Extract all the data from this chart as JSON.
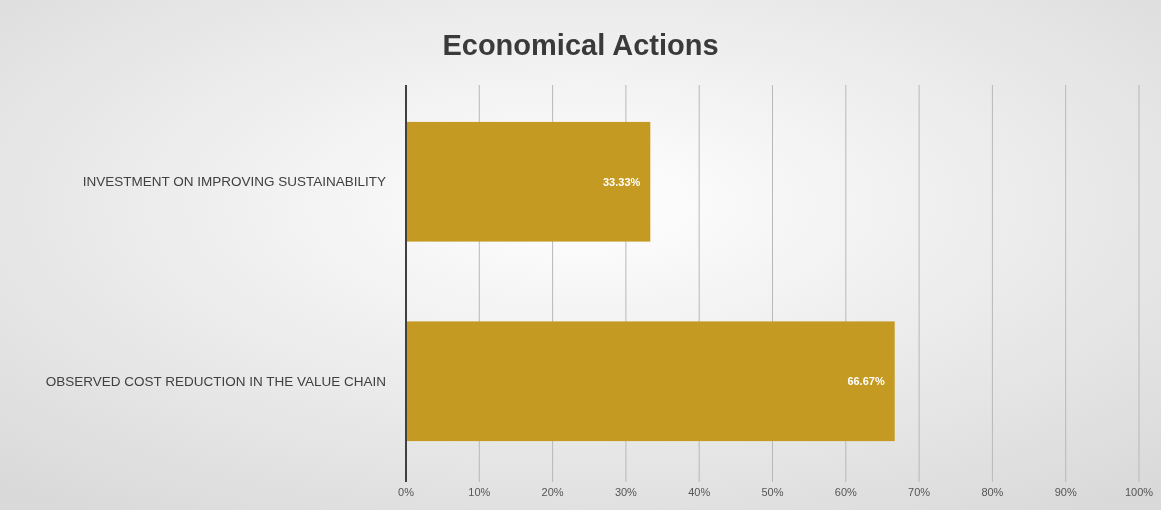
{
  "chart_data": {
    "type": "bar",
    "orientation": "horizontal",
    "title": "Economical Actions",
    "categories": [
      "INVESTMENT ON IMPROVING SUSTAINABILITY",
      "OBSERVED COST REDUCTION IN THE VALUE CHAIN"
    ],
    "values": [
      33.33,
      66.67
    ],
    "color": "#c49a22",
    "value_labels": [
      "33.33%",
      "66.67%"
    ],
    "xlim": [
      0,
      100
    ],
    "xticks": [
      {
        "value": 0,
        "label": "0%"
      },
      {
        "value": 10,
        "label": "10%"
      },
      {
        "value": 20,
        "label": "20%"
      },
      {
        "value": 30,
        "label": "30%"
      },
      {
        "value": 40,
        "label": "40%"
      },
      {
        "value": 50,
        "label": "50%"
      },
      {
        "value": 60,
        "label": "60%"
      },
      {
        "value": 70,
        "label": "70%"
      },
      {
        "value": 80,
        "label": "80%"
      },
      {
        "value": 90,
        "label": "90%"
      },
      {
        "value": 100,
        "label": "100%"
      }
    ],
    "grid": "x"
  }
}
